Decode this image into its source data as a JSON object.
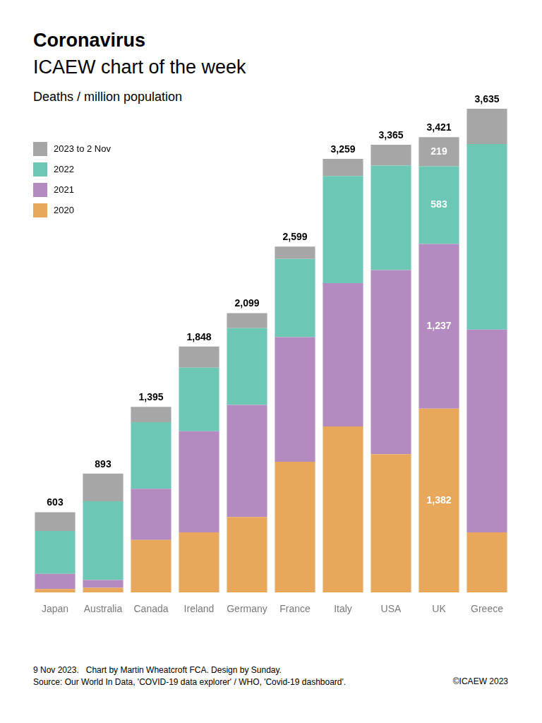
{
  "chart_data": {
    "type": "bar",
    "title": "Coronavirus",
    "subtitle": "ICAEW chart of the week",
    "y_axis_label": "Deaths / million population",
    "stacked": true,
    "grid": false,
    "legend": "top-left",
    "tick_labels": "x",
    "data_labels": true,
    "categories": [
      "Japan",
      "Australia",
      "Canada",
      "Ireland",
      "Germany",
      "France",
      "Italy",
      "USA",
      "UK",
      "Greece"
    ],
    "series": [
      {
        "name": "2020",
        "color": "#e8a85c",
        "values": [
          26,
          35,
          395,
          452,
          567,
          983,
          1248,
          1040,
          1382,
          452
        ],
        "value_labels": [
          null,
          null,
          null,
          null,
          null,
          null,
          null,
          null,
          "1,382",
          null
        ]
      },
      {
        "name": "2021",
        "color": "#b38bc0",
        "values": [
          114,
          59,
          385,
          760,
          842,
          936,
          1076,
          1383,
          1237,
          1524
        ],
        "value_labels": [
          null,
          null,
          null,
          null,
          null,
          null,
          null,
          null,
          "1,237",
          null
        ]
      },
      {
        "name": "2022",
        "color": "#6cc8b5",
        "values": [
          323,
          592,
          499,
          478,
          577,
          587,
          806,
          785,
          583,
          1394
        ],
        "value_labels": [
          null,
          null,
          null,
          null,
          null,
          null,
          null,
          null,
          "583",
          null
        ]
      },
      {
        "name": "2023 to 2 Nov",
        "color": "#a6a6a6",
        "values": [
          140,
          207,
          116,
          158,
          113,
          93,
          129,
          157,
          219,
          265
        ],
        "value_labels": [
          null,
          null,
          null,
          null,
          null,
          null,
          null,
          null,
          "219",
          null
        ]
      }
    ],
    "totals": [
      603,
      893,
      1395,
      1848,
      2099,
      2599,
      3259,
      3365,
      3421,
      3635
    ],
    "total_labels": [
      "603",
      "893",
      "1,395",
      "1,848",
      "2,099",
      "2,599",
      "3,259",
      "3,365",
      "3,421",
      "3,635"
    ],
    "ylim": [
      0,
      3635
    ],
    "footer": [
      "9 Nov 2023.   Chart by Martin Wheatcroft FCA. Design by Sunday.",
      "Source: Our World In Data, 'COVID-19 data explorer' / WHO, 'Covid-19 dashboard'."
    ],
    "copyright": "©ICAEW 2023"
  }
}
